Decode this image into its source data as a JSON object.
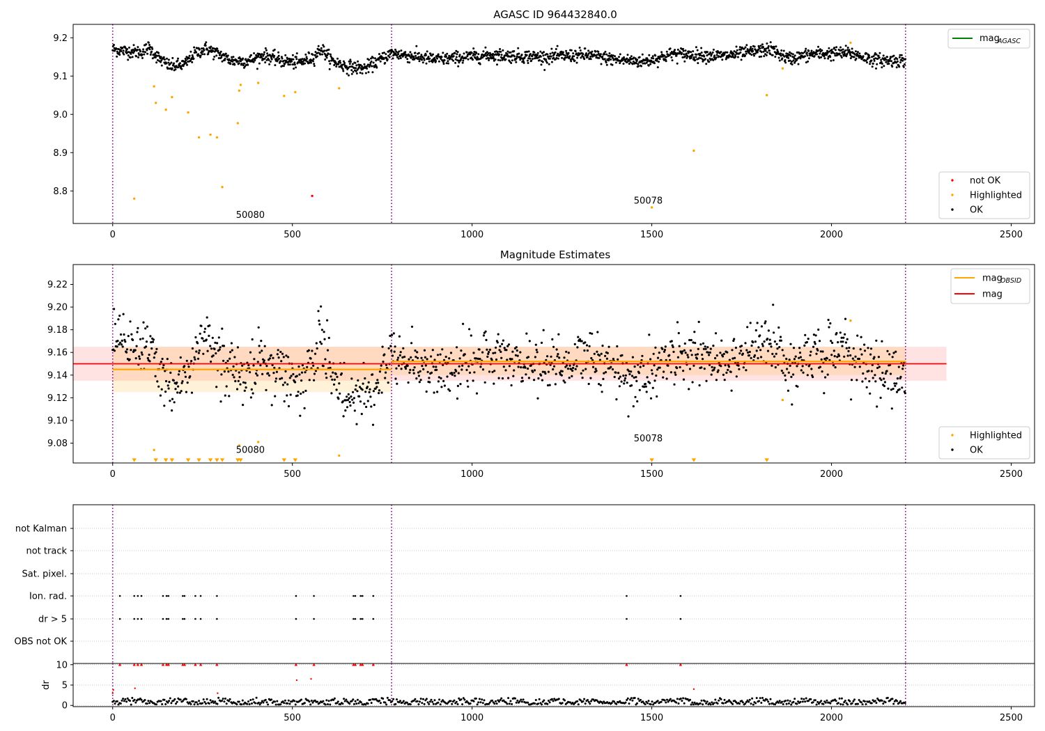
{
  "chart_data": [
    {
      "type": "scatter",
      "title": "AGASC ID 964432840.0",
      "xlim": [
        -110,
        2565
      ],
      "ylim": [
        8.715,
        9.235
      ],
      "xticks": [
        0,
        500,
        1000,
        1500,
        2000,
        2500
      ],
      "yticks": [
        8.8,
        8.9,
        9.0,
        9.1,
        9.2
      ],
      "ytick_labels": [
        "8.8",
        "8.9",
        "9.0",
        "9.1",
        "9.2"
      ],
      "vlines": [
        0,
        776,
        2206
      ],
      "grid": false,
      "legend_line": {
        "label": "mag",
        "sub": "AGASC",
        "color": "#008000",
        "placement": "top-right"
      },
      "legend_points": {
        "placement": "bottom-right",
        "entries": [
          {
            "label": "not OK",
            "color": "#ff0000"
          },
          {
            "label": "Highlighted",
            "color": "#ffa500"
          },
          {
            "label": "OK",
            "color": "#000000"
          }
        ]
      },
      "annotations": [
        {
          "text": "50080",
          "x": 343,
          "y": 8.73
        },
        {
          "text": "50078",
          "x": 1450,
          "y": 8.767
        }
      ],
      "ok_series": {
        "color": "#000000",
        "x_start": 0,
        "x_end": 2206,
        "trend": [
          [
            0,
            9.17
          ],
          [
            40,
            9.165
          ],
          [
            80,
            9.162
          ],
          [
            100,
            9.175
          ],
          [
            130,
            9.145
          ],
          [
            160,
            9.125
          ],
          [
            200,
            9.13
          ],
          [
            230,
            9.16
          ],
          [
            260,
            9.172
          ],
          [
            300,
            9.155
          ],
          [
            330,
            9.14
          ],
          [
            380,
            9.14
          ],
          [
            420,
            9.155
          ],
          [
            470,
            9.14
          ],
          [
            520,
            9.135
          ],
          [
            560,
            9.15
          ],
          [
            580,
            9.172
          ],
          [
            610,
            9.14
          ],
          [
            650,
            9.125
          ],
          [
            700,
            9.12
          ],
          [
            740,
            9.14
          ],
          [
            776,
            9.16
          ],
          [
            900,
            9.143
          ],
          [
            1050,
            9.155
          ],
          [
            1200,
            9.15
          ],
          [
            1320,
            9.155
          ],
          [
            1400,
            9.143
          ],
          [
            1480,
            9.138
          ],
          [
            1560,
            9.158
          ],
          [
            1700,
            9.152
          ],
          [
            1830,
            9.17
          ],
          [
            1880,
            9.145
          ],
          [
            1950,
            9.158
          ],
          [
            2050,
            9.16
          ],
          [
            2120,
            9.142
          ],
          [
            2206,
            9.14
          ]
        ]
      },
      "highlighted": {
        "color": "#ffa500",
        "points": [
          [
            60,
            8.78
          ],
          [
            115,
            9.073
          ],
          [
            120,
            9.03
          ],
          [
            148,
            9.012
          ],
          [
            165,
            9.045
          ],
          [
            210,
            9.005
          ],
          [
            240,
            8.94
          ],
          [
            272,
            8.947
          ],
          [
            290,
            8.94
          ],
          [
            305,
            8.81
          ],
          [
            348,
            8.977
          ],
          [
            352,
            9.062
          ],
          [
            356,
            9.077
          ],
          [
            405,
            9.082
          ],
          [
            477,
            9.048
          ],
          [
            508,
            9.058
          ],
          [
            630,
            9.068
          ],
          [
            1500,
            8.757
          ],
          [
            1617,
            8.905
          ],
          [
            1820,
            9.05
          ],
          [
            1864,
            9.12
          ],
          [
            2053,
            9.187
          ]
        ]
      },
      "not_ok": {
        "color": "#ff0000",
        "points": [
          [
            555,
            8.787
          ]
        ]
      }
    },
    {
      "type": "scatter",
      "title": "Magnitude Estimates",
      "xlim": [
        -110,
        2565
      ],
      "ylim": [
        9.0625,
        9.2375
      ],
      "xticks": [
        0,
        500,
        1000,
        1500,
        2000,
        2500
      ],
      "yticks": [
        9.08,
        9.1,
        9.12,
        9.14,
        9.16,
        9.18,
        9.2,
        9.22
      ],
      "ytick_labels": [
        "9.08",
        "9.10",
        "9.12",
        "9.14",
        "9.16",
        "9.18",
        "9.20",
        "9.22"
      ],
      "vlines": [
        0,
        776,
        2206
      ],
      "grid": false,
      "bands": [
        {
          "x": [
            -110,
            2320
          ],
          "y": [
            9.135,
            9.165
          ],
          "color": "#ff0000",
          "opacity": 0.11
        },
        {
          "x": [
            0,
            776
          ],
          "y": [
            9.125,
            9.165
          ],
          "color": "#ffa500",
          "opacity": 0.15
        },
        {
          "x": [
            776,
            2206
          ],
          "y": [
            9.14,
            9.165
          ],
          "color": "#ffa500",
          "opacity": 0.15
        }
      ],
      "lines": [
        {
          "x": [
            -110,
            2320
          ],
          "y": 9.15,
          "color": "#ff0000",
          "width": 1.8
        },
        {
          "x": [
            0,
            776
          ],
          "y": 9.145,
          "color": "#ffa500",
          "width": 2.2
        },
        {
          "x": [
            776,
            2206
          ],
          "y": 9.152,
          "color": "#ffa500",
          "width": 2.2
        }
      ],
      "legend_line": {
        "placement": "top-right",
        "entries": [
          {
            "label": "mag",
            "sub": "OBSID",
            "color": "#ffa500"
          },
          {
            "label": "mag",
            "sub": "",
            "color": "#ff0000"
          }
        ]
      },
      "legend_points": {
        "placement": "bottom-right",
        "entries": [
          {
            "label": "Highlighted",
            "color": "#ffa500"
          },
          {
            "label": "OK",
            "color": "#000000"
          }
        ]
      },
      "annotations": [
        {
          "text": "50080",
          "x": 343,
          "y": 9.0715
        },
        {
          "text": "50078",
          "x": 1450,
          "y": 9.0815
        }
      ],
      "highlighted": {
        "color": "#ffa500",
        "points": [
          [
            115,
            9.074
          ],
          [
            352,
            9.078
          ],
          [
            405,
            9.081
          ],
          [
            630,
            9.069
          ],
          [
            1864,
            9.118
          ],
          [
            2053,
            9.188
          ]
        ]
      },
      "highlighted_lower": {
        "color": "#ffa500",
        "y": 9.065,
        "x": [
          60,
          120,
          148,
          165,
          210,
          240,
          272,
          290,
          305,
          348,
          356,
          477,
          508,
          1500,
          1617,
          1820
        ]
      }
    },
    {
      "type": "scatter",
      "xlim": [
        -110,
        2565
      ],
      "categories": [
        "not Kalman",
        "not track",
        "Sat. pixel.",
        "Ion. rad.",
        "dr > 5",
        "OBS not OK"
      ],
      "grid": true,
      "vlines": [
        0,
        776,
        2206
      ],
      "flag_points": {
        "Ion. rad.": [
          20,
          60,
          70,
          80,
          140,
          150,
          155,
          195,
          200,
          230,
          245,
          290,
          510,
          560,
          670,
          675,
          690,
          695,
          725,
          1430,
          1580
        ],
        "dr > 5": [
          20,
          60,
          70,
          80,
          140,
          150,
          155,
          195,
          200,
          230,
          245,
          290,
          510,
          560,
          670,
          675,
          690,
          695,
          725,
          1430,
          1580
        ]
      }
    },
    {
      "type": "scatter",
      "xlim": [
        -110,
        2565
      ],
      "ylim": [
        -0.3,
        10.3
      ],
      "ylabel": "dr",
      "xticks": [
        0,
        500,
        1000,
        1500,
        2000,
        2500
      ],
      "yticks": [
        0,
        5,
        10
      ],
      "ytick_labels": [
        "0",
        "5",
        "10"
      ],
      "vlines": [
        0,
        776,
        2206
      ],
      "grid": true,
      "red_points": [
        [
          0,
          3.0
        ],
        [
          2,
          3.8
        ],
        [
          20,
          10
        ],
        [
          60,
          10
        ],
        [
          62,
          4.2
        ],
        [
          70,
          10
        ],
        [
          80,
          10
        ],
        [
          140,
          10
        ],
        [
          150,
          10
        ],
        [
          155,
          10
        ],
        [
          195,
          10
        ],
        [
          200,
          10
        ],
        [
          230,
          10
        ],
        [
          245,
          10
        ],
        [
          290,
          10
        ],
        [
          292,
          3.0
        ],
        [
          510,
          10
        ],
        [
          512,
          6.2
        ],
        [
          552,
          6.5
        ],
        [
          560,
          10
        ],
        [
          670,
          10
        ],
        [
          675,
          10
        ],
        [
          690,
          10
        ],
        [
          695,
          10
        ],
        [
          725,
          10
        ],
        [
          1430,
          10
        ],
        [
          1580,
          10
        ],
        [
          1617,
          4.0
        ]
      ],
      "ok_band": {
        "color": "#000000",
        "y_low": 0.2,
        "y_high": 1.9
      }
    }
  ]
}
